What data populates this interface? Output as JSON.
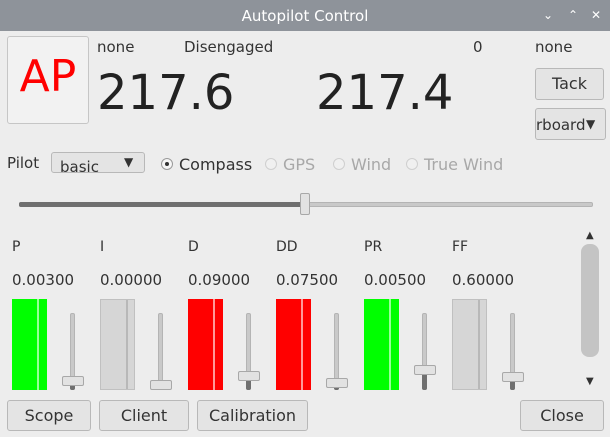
{
  "window": {
    "title": "Autopilot Control"
  },
  "colors": {
    "red": "#ff0000",
    "green": "#00ff00",
    "gray": "#d6d6d6"
  },
  "header": {
    "ap_label": "AP",
    "mode_status": "none",
    "engage_status": "Disengaged",
    "counter": "0",
    "tack_status": "none",
    "heading": "217.6",
    "command": "217.4",
    "tack_button": "Tack",
    "tack_direction": "rboard"
  },
  "pilot": {
    "label": "Pilot",
    "selected": "basic",
    "modes": [
      {
        "label": "Compass",
        "selected": true,
        "enabled": true
      },
      {
        "label": "GPS",
        "selected": false,
        "enabled": false
      },
      {
        "label": "Wind",
        "selected": false,
        "enabled": false
      },
      {
        "label": "True Wind",
        "selected": false,
        "enabled": false
      }
    ]
  },
  "gains": [
    {
      "name": "P",
      "value": "0.00300",
      "bar_color": "green",
      "level": 0.05
    },
    {
      "name": "I",
      "value": "0.00000",
      "bar_color": "gray",
      "level": 0.0
    },
    {
      "name": "D",
      "value": "0.09000",
      "bar_color": "red",
      "level": 0.12
    },
    {
      "name": "DD",
      "value": "0.07500",
      "bar_color": "red",
      "level": 0.03
    },
    {
      "name": "PR",
      "value": "0.00500",
      "bar_color": "green",
      "level": 0.2
    },
    {
      "name": "FF",
      "value": "0.60000",
      "bar_color": "gray",
      "level": 0.1
    }
  ],
  "footer": {
    "scope": "Scope",
    "client": "Client",
    "calibration": "Calibration",
    "close": "Close"
  }
}
